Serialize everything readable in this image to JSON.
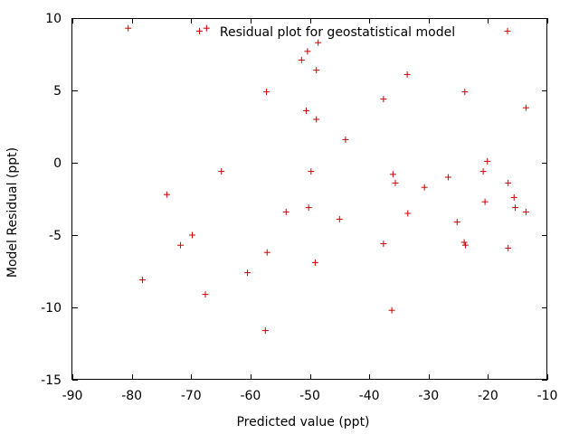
{
  "chart_data": {
    "type": "scatter",
    "title": "Residual plot for geostatistical model",
    "xlabel": "Predicted value (ppt)",
    "ylabel": "Model Residual (ppt)",
    "xlim": [
      -90,
      -10
    ],
    "ylim": [
      -15,
      10
    ],
    "xticks": [
      -90,
      -80,
      -70,
      -60,
      -50,
      -40,
      -30,
      -20,
      -10
    ],
    "yticks": [
      -15,
      -10,
      -5,
      0,
      5,
      10
    ],
    "grid": false,
    "marker_color": "#cc0000",
    "marker": "plus",
    "points": [
      {
        "x": -80.6,
        "y": 9.3
      },
      {
        "x": -68.6,
        "y": 9.1
      },
      {
        "x": -67.4,
        "y": 9.3
      },
      {
        "x": -48.6,
        "y": 8.3
      },
      {
        "x": -50.4,
        "y": 7.7
      },
      {
        "x": -51.4,
        "y": 7.1
      },
      {
        "x": -48.9,
        "y": 6.4
      },
      {
        "x": -33.6,
        "y": 6.1
      },
      {
        "x": -16.7,
        "y": 9.1
      },
      {
        "x": -57.3,
        "y": 4.9
      },
      {
        "x": -37.6,
        "y": 4.4
      },
      {
        "x": -23.9,
        "y": 4.9
      },
      {
        "x": -13.6,
        "y": 3.8
      },
      {
        "x": -50.6,
        "y": 3.6
      },
      {
        "x": -48.9,
        "y": 3.0
      },
      {
        "x": -44.0,
        "y": 1.6
      },
      {
        "x": -20.1,
        "y": 0.1
      },
      {
        "x": -64.9,
        "y": -0.6
      },
      {
        "x": -49.8,
        "y": -0.6
      },
      {
        "x": -36.0,
        "y": -0.8
      },
      {
        "x": -35.6,
        "y": -1.4
      },
      {
        "x": -30.7,
        "y": -1.7
      },
      {
        "x": -26.7,
        "y": -1.0
      },
      {
        "x": -20.8,
        "y": -0.6
      },
      {
        "x": -16.6,
        "y": -1.4
      },
      {
        "x": -74.1,
        "y": -2.2
      },
      {
        "x": -50.2,
        "y": -3.1
      },
      {
        "x": -54.0,
        "y": -3.4
      },
      {
        "x": -45.0,
        "y": -3.9
      },
      {
        "x": -33.5,
        "y": -3.5
      },
      {
        "x": -20.5,
        "y": -2.7
      },
      {
        "x": -15.6,
        "y": -2.4
      },
      {
        "x": -15.4,
        "y": -3.1
      },
      {
        "x": -13.6,
        "y": -3.4
      },
      {
        "x": -25.2,
        "y": -4.1
      },
      {
        "x": -69.8,
        "y": -5.0
      },
      {
        "x": -71.8,
        "y": -5.7
      },
      {
        "x": -37.6,
        "y": -5.6
      },
      {
        "x": -24.0,
        "y": -5.5
      },
      {
        "x": -23.8,
        "y": -5.7
      },
      {
        "x": -16.6,
        "y": -5.9
      },
      {
        "x": -57.2,
        "y": -6.2
      },
      {
        "x": -49.1,
        "y": -6.9
      },
      {
        "x": -60.5,
        "y": -7.6
      },
      {
        "x": -78.2,
        "y": -8.1
      },
      {
        "x": -67.6,
        "y": -9.1
      },
      {
        "x": -36.2,
        "y": -10.2
      },
      {
        "x": -57.5,
        "y": -11.6
      }
    ]
  }
}
